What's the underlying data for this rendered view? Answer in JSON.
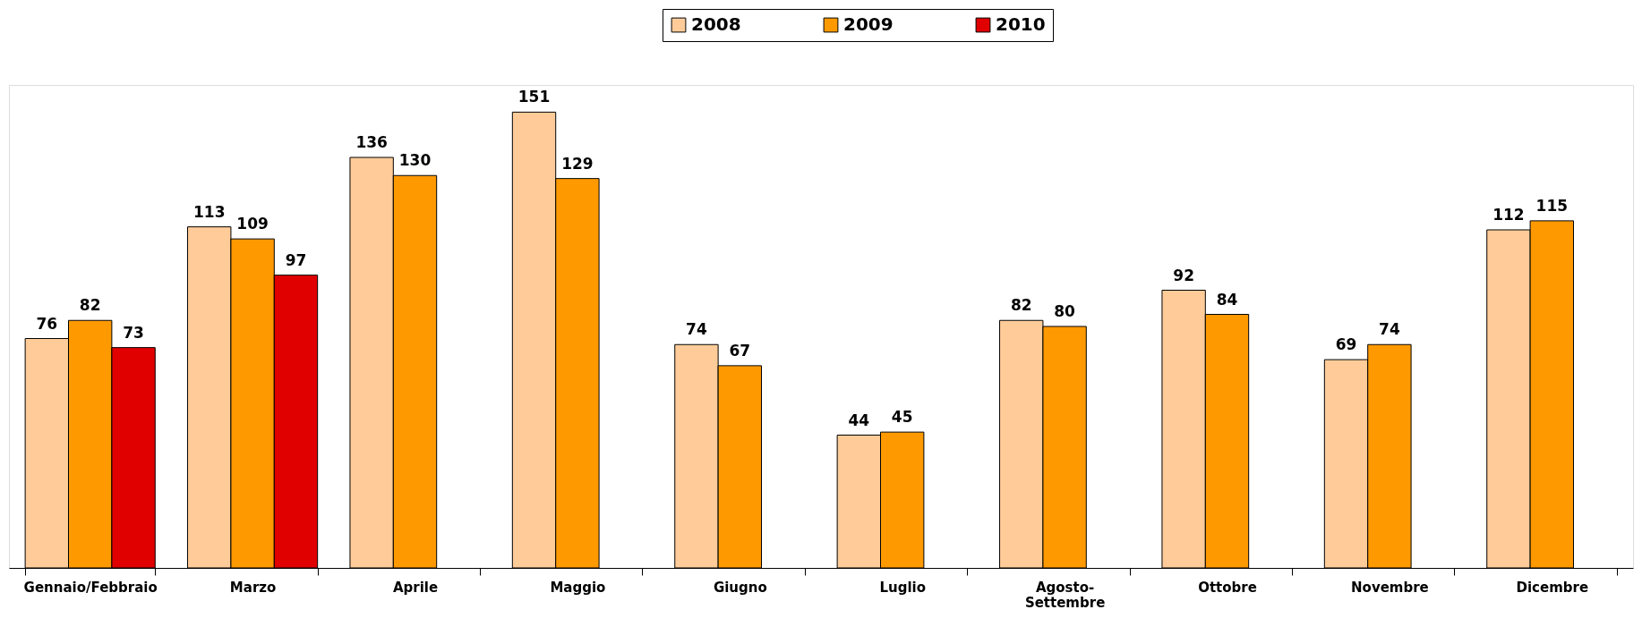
{
  "chart_data": {
    "type": "bar",
    "categories": [
      "Gennaio/Febbraio",
      "Marzo",
      "Aprile",
      "Maggio",
      "Giugno",
      "Luglio",
      "Agosto-\nSettembre",
      "Ottobre",
      "Novembre",
      "Dicembre"
    ],
    "series": [
      {
        "name": "2008",
        "color": "#ffcc99",
        "values": [
          76,
          113,
          136,
          151,
          74,
          44,
          82,
          92,
          69,
          112
        ]
      },
      {
        "name": "2009",
        "color": "#ff9900",
        "values": [
          82,
          109,
          130,
          129,
          67,
          45,
          80,
          84,
          74,
          115
        ]
      },
      {
        "name": "2010",
        "color": "#e00000",
        "values": [
          73,
          97,
          null,
          null,
          null,
          null,
          null,
          null,
          null,
          null
        ]
      }
    ],
    "data_labels": true,
    "legend": "top",
    "grid": false
  }
}
